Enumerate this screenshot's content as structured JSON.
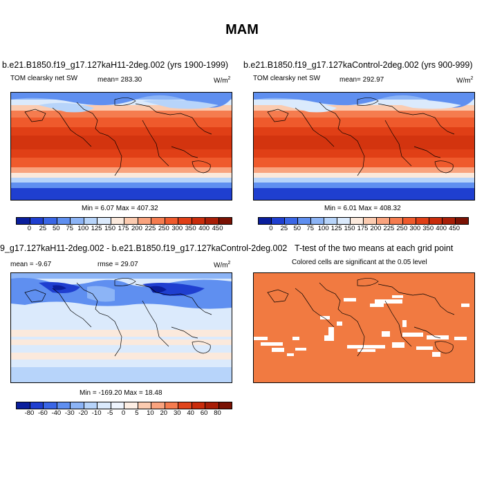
{
  "main_title": "MAM",
  "panels": {
    "p1": {
      "title": "b.e21.B1850.f19_g17.127kaH11-2deg.002 (yrs 1900-1999)",
      "left": "TOM clearsky net SW",
      "center": "mean= 283.30",
      "units": "W/m",
      "units_exp": "2",
      "minmax": "Min =   6.07 Max = 407.32"
    },
    "p2": {
      "title": "b.e21.B1850.f19_g17.127kaControl-2deg.002 (yrs 900-999)",
      "left": "TOM clearsky net SW",
      "center": "mean= 292.97",
      "units": "W/m",
      "units_exp": "2",
      "minmax": "Min =   6.01 Max = 408.32"
    },
    "p3": {
      "title_a": "9_g17.127kaH11-2deg.002 - b.e21.B1850.f19_g17.127kaControl-2deg.002",
      "left": "mean =  -9.67",
      "center": "rmse =  29.07",
      "units": "W/m",
      "units_exp": "2",
      "minmax": "Min = -169.20 Max =  18.48"
    },
    "p4": {
      "title": "T-test of the two means at each grid point",
      "subtitle": "Colored cells are significant at the 0.05 level"
    }
  },
  "colorbar_abs": {
    "labels": [
      "0",
      "25",
      "50",
      "75",
      "100",
      "125",
      "150",
      "175",
      "200",
      "225",
      "250",
      "300",
      "350",
      "400",
      "450"
    ],
    "colors": [
      "#0a1e9c",
      "#1f3fd0",
      "#3a66e6",
      "#5f8ff0",
      "#8cb4f6",
      "#b7d4fa",
      "#dbeafc",
      "#fbe9dc",
      "#fbcbb0",
      "#f9a37e",
      "#f57c4f",
      "#ef5a2c",
      "#e03f16",
      "#c92c0b",
      "#a81e07",
      "#7a1204"
    ]
  },
  "colorbar_diff": {
    "labels": [
      "-80",
      "-60",
      "-40",
      "-30",
      "-20",
      "-10",
      "-5",
      "0",
      "5",
      "10",
      "20",
      "30",
      "40",
      "60",
      "80"
    ],
    "colors": [
      "#0a1e9c",
      "#1f3fd0",
      "#3a66e6",
      "#5f8ff0",
      "#8cb4f6",
      "#b7d4fa",
      "#dbeafc",
      "#eef4fd",
      "#fdeee4",
      "#fbcbb0",
      "#f9a37e",
      "#f57c4f",
      "#e0451c",
      "#c92c0b",
      "#a81e07",
      "#7a1204"
    ]
  }
}
